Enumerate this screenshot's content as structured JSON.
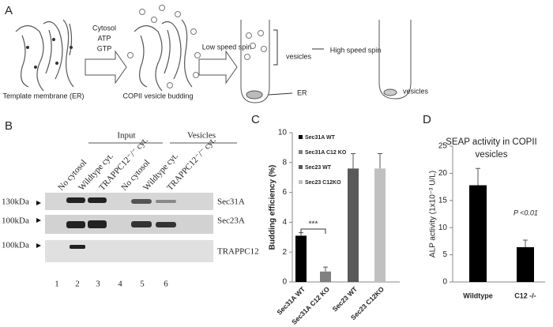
{
  "panel_a": {
    "letter": "A",
    "cytosol": "Cytosol",
    "atp": "ATP",
    "gtp": "GTP",
    "template": "Template membrane (ER)",
    "budding": "COPII vesicle budding",
    "low_spin": "Low speed spin",
    "vesicles_1": "vesicles",
    "er": "ER",
    "high_spin": "High speed spin",
    "vesicles_2": "vesicles"
  },
  "panel_b": {
    "letter": "B",
    "input": "Input",
    "vesicles": "Vesicles",
    "lanes": [
      "No cytosol",
      "Wildtype cyt.",
      "TRAPPC12⁻/⁻ cyt.",
      "No cytosol",
      "Wildtype cyt.",
      "TRAPPC12⁻/⁻ cyt."
    ],
    "lane_numbers": [
      "1",
      "2",
      "3",
      "4",
      "5",
      "6"
    ],
    "weights": [
      "130kDa",
      "100kDa",
      "100kDa"
    ],
    "proteins": [
      "Sec31A",
      "Sec23A",
      "TRAPPC12"
    ]
  },
  "chart_data": [
    {
      "type": "bar",
      "letter": "C",
      "ylabel": "Budding efficiency (%)",
      "categories": [
        "Sec31A WT",
        "Sec31A C12 KO",
        "Sec23 WT",
        "Sec23 C12KO"
      ],
      "values": [
        3.1,
        0.7,
        7.6,
        7.6
      ],
      "errors": [
        0.2,
        0.3,
        1.0,
        1.0
      ],
      "colors": [
        "#000000",
        "#808080",
        "#595959",
        "#c0c0c0"
      ],
      "ylim": [
        0,
        10
      ],
      "yticks": [
        0,
        2,
        4,
        6,
        8,
        10
      ],
      "legend": true,
      "annotation": "***"
    },
    {
      "type": "bar",
      "letter": "D",
      "title": "SEAP activity in COPII vesicles",
      "ylabel": "ALP activity (1x10⁻³ U/L)",
      "categories": [
        "Wildtype",
        "C12 -/-"
      ],
      "values": [
        17.8,
        6.4
      ],
      "errors": [
        3.1,
        1.3
      ],
      "colors": [
        "#000000",
        "#000000"
      ],
      "ylim": [
        0,
        25
      ],
      "yticks": [
        0,
        5,
        10,
        15,
        20,
        25
      ],
      "legend": false,
      "annotation": "P <0.01"
    }
  ]
}
